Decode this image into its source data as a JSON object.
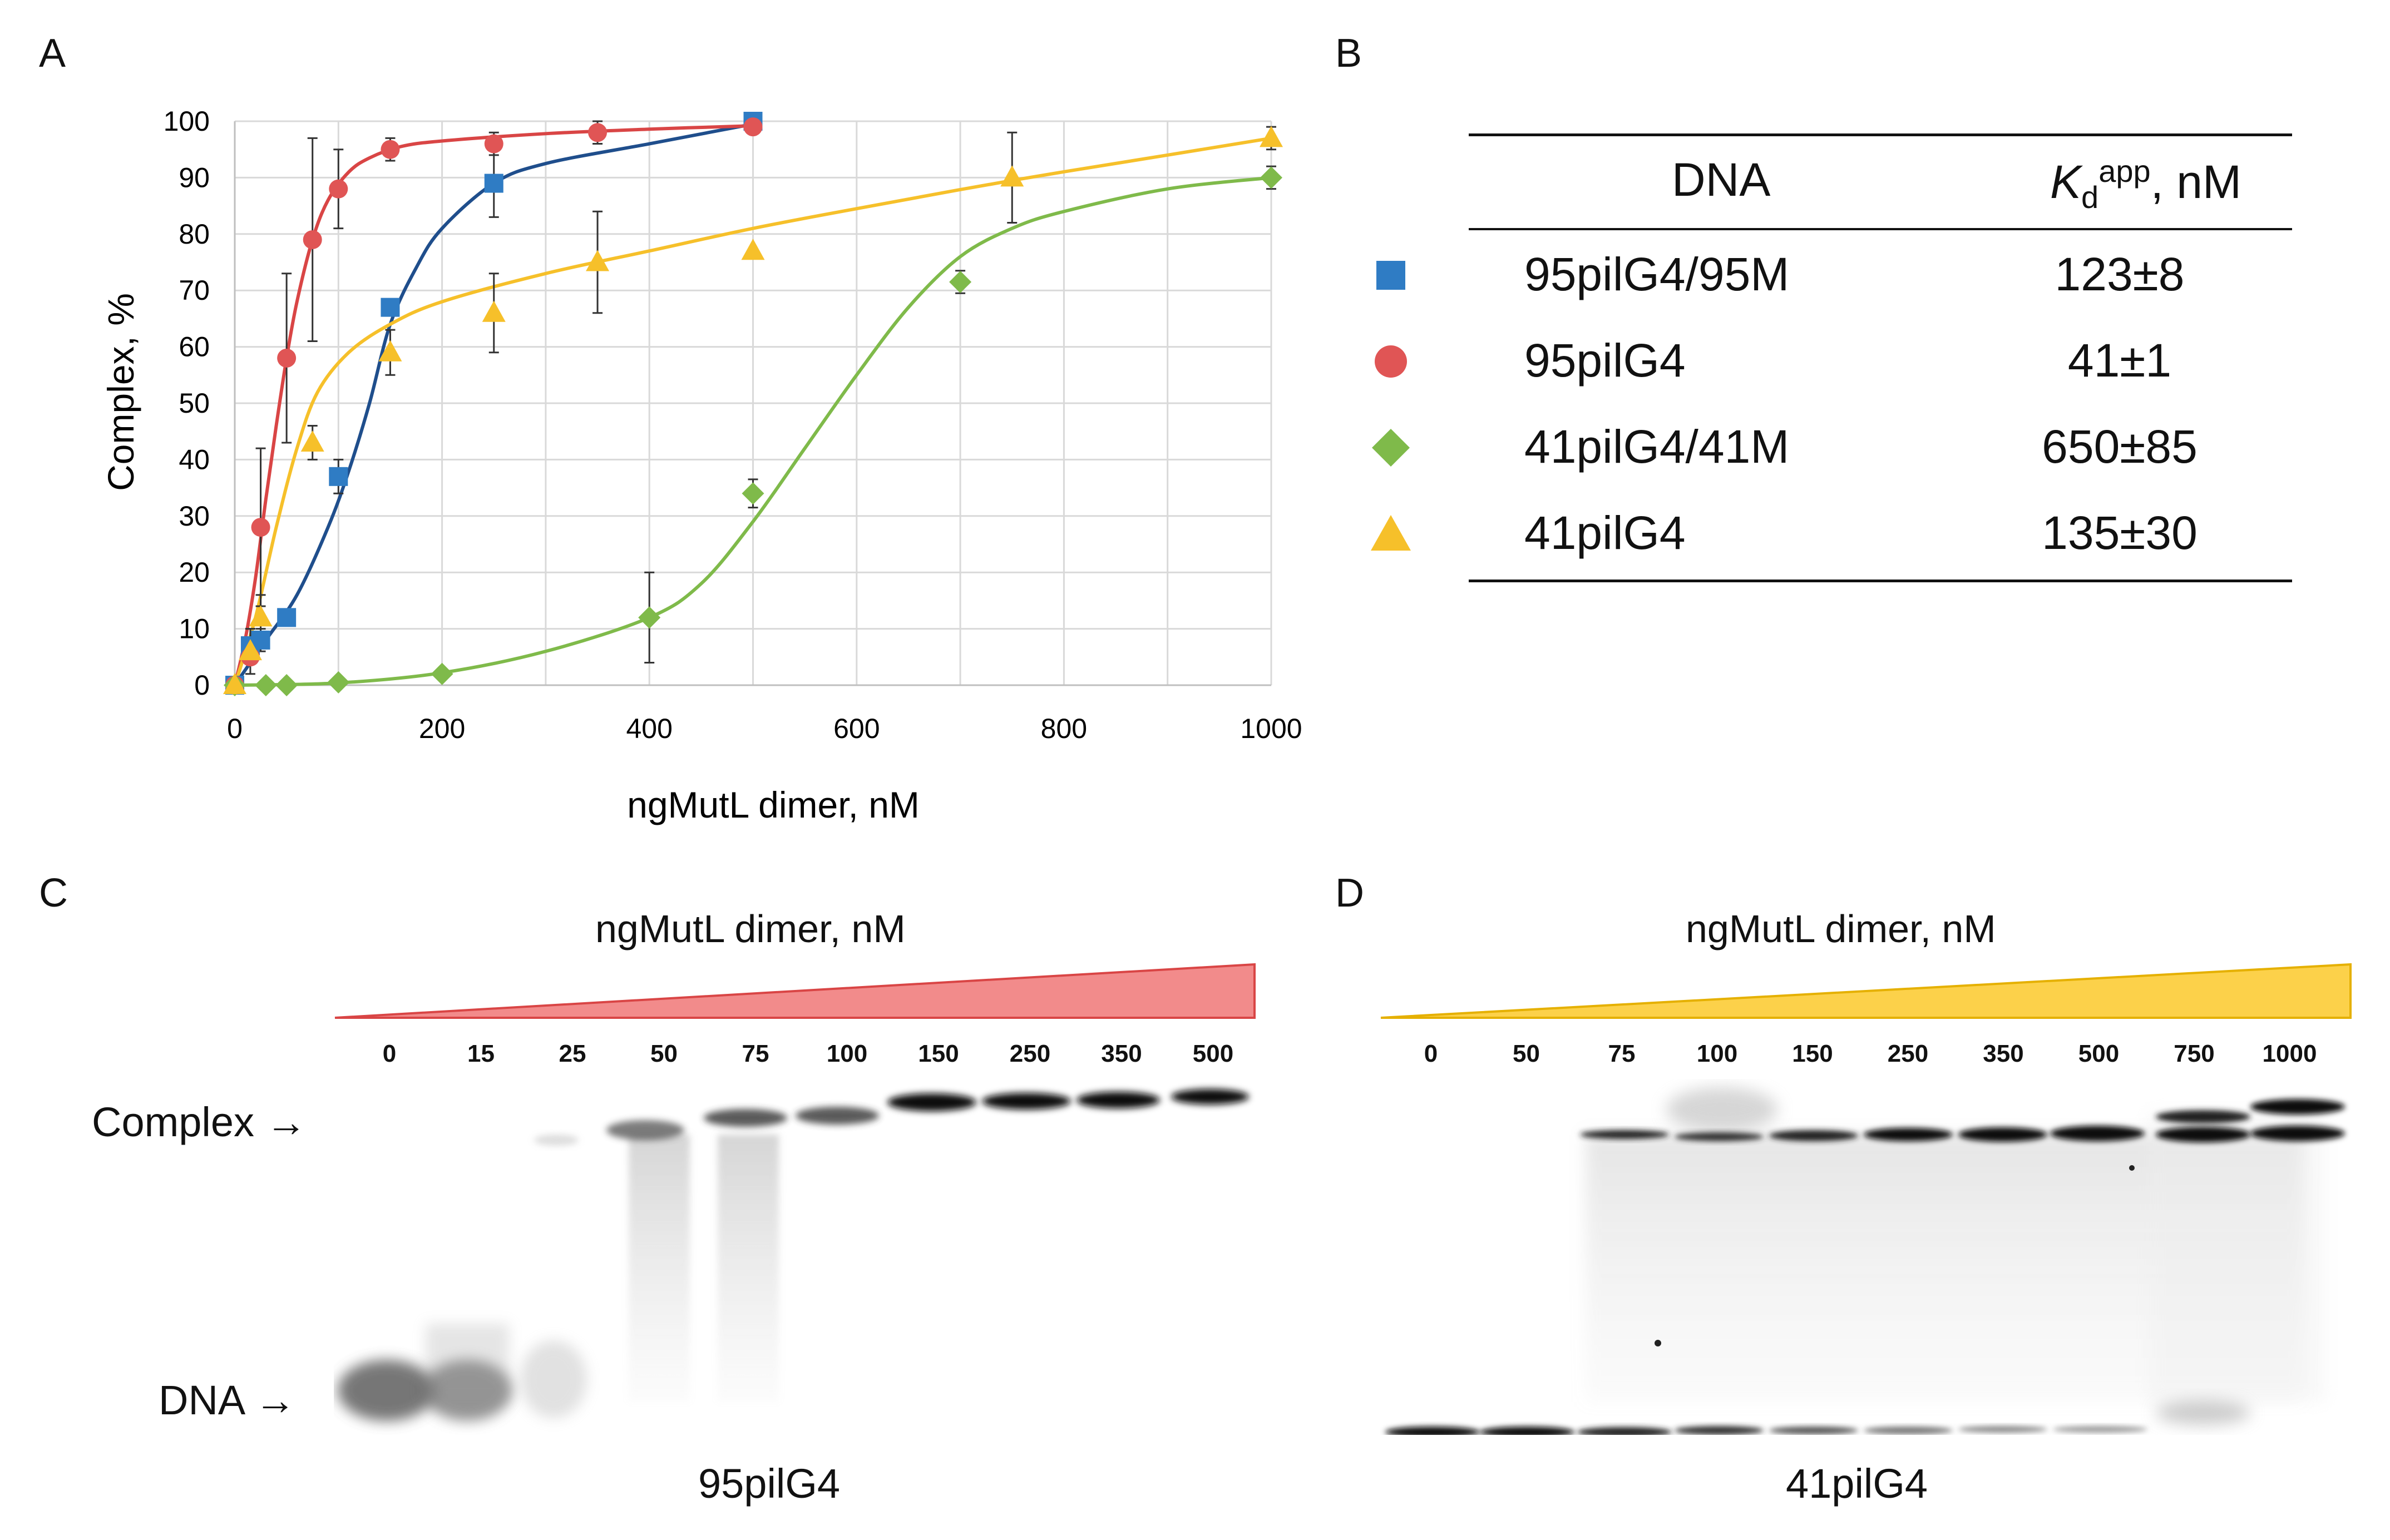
{
  "panels": {
    "a": "A",
    "b": "B",
    "c": "C",
    "d": "D"
  },
  "chart_data": {
    "type": "scatter",
    "xlabel": "ngMutL dimer, nM",
    "ylabel": "Complex, %",
    "xlim": [
      0,
      1000
    ],
    "ylim": [
      0,
      100
    ],
    "xticks": [
      0,
      200,
      400,
      600,
      800,
      1000
    ],
    "yticks": [
      0,
      10,
      20,
      30,
      40,
      50,
      60,
      70,
      80,
      90,
      100
    ],
    "grid": true,
    "series": [
      {
        "name": "95pilG4/95M",
        "marker": "square",
        "color": "#2f7cc4",
        "line_color": "#1f4e8c",
        "points": [
          [
            0,
            0
          ],
          [
            15,
            7
          ],
          [
            25,
            8
          ],
          [
            50,
            12
          ],
          [
            100,
            37
          ],
          [
            150,
            67
          ],
          [
            250,
            89
          ],
          [
            500,
            100
          ]
        ],
        "errors": [
          0,
          3,
          2,
          0,
          3,
          0,
          6,
          0
        ],
        "fit": [
          [
            0,
            0
          ],
          [
            30,
            8
          ],
          [
            60,
            16
          ],
          [
            90,
            28
          ],
          [
            110,
            38
          ],
          [
            130,
            50
          ],
          [
            150,
            64
          ],
          [
            175,
            74
          ],
          [
            200,
            81
          ],
          [
            250,
            89
          ],
          [
            300,
            92.5
          ],
          [
            400,
            96
          ],
          [
            500,
            99.5
          ]
        ]
      },
      {
        "name": "95pilG4",
        "marker": "circle",
        "color": "#e05555",
        "line_color": "#d94545",
        "points": [
          [
            0,
            0
          ],
          [
            15,
            5
          ],
          [
            25,
            28
          ],
          [
            50,
            58
          ],
          [
            75,
            79
          ],
          [
            100,
            88
          ],
          [
            150,
            95
          ],
          [
            250,
            96
          ],
          [
            350,
            98
          ],
          [
            500,
            99
          ]
        ],
        "errors": [
          0,
          0,
          14,
          15,
          18,
          7,
          2,
          2,
          2,
          0
        ],
        "fit": [
          [
            0,
            0
          ],
          [
            10,
            8
          ],
          [
            20,
            19
          ],
          [
            30,
            33
          ],
          [
            40,
            46
          ],
          [
            50,
            58
          ],
          [
            60,
            68
          ],
          [
            75,
            79
          ],
          [
            90,
            86
          ],
          [
            110,
            91
          ],
          [
            130,
            93.5
          ],
          [
            160,
            95.5
          ],
          [
            200,
            96.5
          ],
          [
            300,
            97.8
          ],
          [
            400,
            98.6
          ],
          [
            500,
            99.2
          ]
        ]
      },
      {
        "name": "41pilG4/41M",
        "marker": "diamond",
        "color": "#7fba4a",
        "line_color": "#7fba4a",
        "points": [
          [
            0,
            0
          ],
          [
            30,
            0
          ],
          [
            50,
            0
          ],
          [
            100,
            0.5
          ],
          [
            200,
            2
          ],
          [
            400,
            12
          ],
          [
            500,
            34
          ],
          [
            700,
            71.5
          ],
          [
            1000,
            90
          ]
        ],
        "errors": [
          0,
          0,
          0,
          0,
          0,
          8,
          2.5,
          2,
          2
        ],
        "fit": [
          [
            0,
            0
          ],
          [
            100,
            0.4
          ],
          [
            200,
            2.2
          ],
          [
            300,
            6
          ],
          [
            400,
            12
          ],
          [
            450,
            18
          ],
          [
            500,
            29
          ],
          [
            550,
            42
          ],
          [
            600,
            55
          ],
          [
            650,
            67
          ],
          [
            700,
            76
          ],
          [
            750,
            81
          ],
          [
            800,
            84
          ],
          [
            900,
            88
          ],
          [
            1000,
            90
          ]
        ]
      },
      {
        "name": "41pilG4",
        "marker": "triangle",
        "color": "#f6c02a",
        "line_color": "#f6c02a",
        "points": [
          [
            0,
            0
          ],
          [
            15,
            6
          ],
          [
            25,
            12
          ],
          [
            75,
            43
          ],
          [
            150,
            59
          ],
          [
            250,
            66
          ],
          [
            350,
            75
          ],
          [
            500,
            77
          ],
          [
            750,
            90
          ],
          [
            1000,
            97
          ]
        ],
        "errors": [
          0,
          4,
          4,
          3,
          4,
          7,
          9,
          0,
          8,
          2
        ],
        "fit": [
          [
            0,
            0
          ],
          [
            20,
            12
          ],
          [
            40,
            28
          ],
          [
            60,
            42
          ],
          [
            80,
            52
          ],
          [
            110,
            59
          ],
          [
            150,
            64
          ],
          [
            200,
            68
          ],
          [
            300,
            73
          ],
          [
            400,
            77
          ],
          [
            500,
            81
          ],
          [
            600,
            84.5
          ],
          [
            750,
            89.5
          ],
          [
            900,
            94
          ],
          [
            1000,
            97
          ]
        ]
      }
    ]
  },
  "table": {
    "header_dna": "DNA",
    "header_kd_symbol": "K",
    "header_kd_sub": "d",
    "header_kd_sup": "app",
    "header_kd_unit": ", nM",
    "rows": [
      {
        "dna": "95pilG4/95M",
        "kd": "123±8",
        "marker": "square",
        "color": "#2f7cc4"
      },
      {
        "dna": "95pilG4",
        "kd": "41±1",
        "marker": "circle",
        "color": "#e05555"
      },
      {
        "dna": "41pilG4/41M",
        "kd": "650±85",
        "marker": "diamond",
        "color": "#7fba4a"
      },
      {
        "dna": "41pilG4",
        "kd": "135±30",
        "marker": "triangle",
        "color": "#f6c02a"
      }
    ]
  },
  "gel_c": {
    "title": "ngMutL dimer, nM",
    "lanes": [
      "0",
      "15",
      "25",
      "50",
      "75",
      "100",
      "150",
      "250",
      "350",
      "500"
    ],
    "name": "95pilG4",
    "complex_label": "Complex →",
    "dna_label": "DNA →",
    "wedge_color": "#f28b8b"
  },
  "gel_d": {
    "title": "ngMutL dimer, nM",
    "lanes": [
      "0",
      "50",
      "75",
      "100",
      "150",
      "250",
      "350",
      "500",
      "750",
      "1000"
    ],
    "name": "41pilG4",
    "wedge_color": "#fcd14a"
  }
}
